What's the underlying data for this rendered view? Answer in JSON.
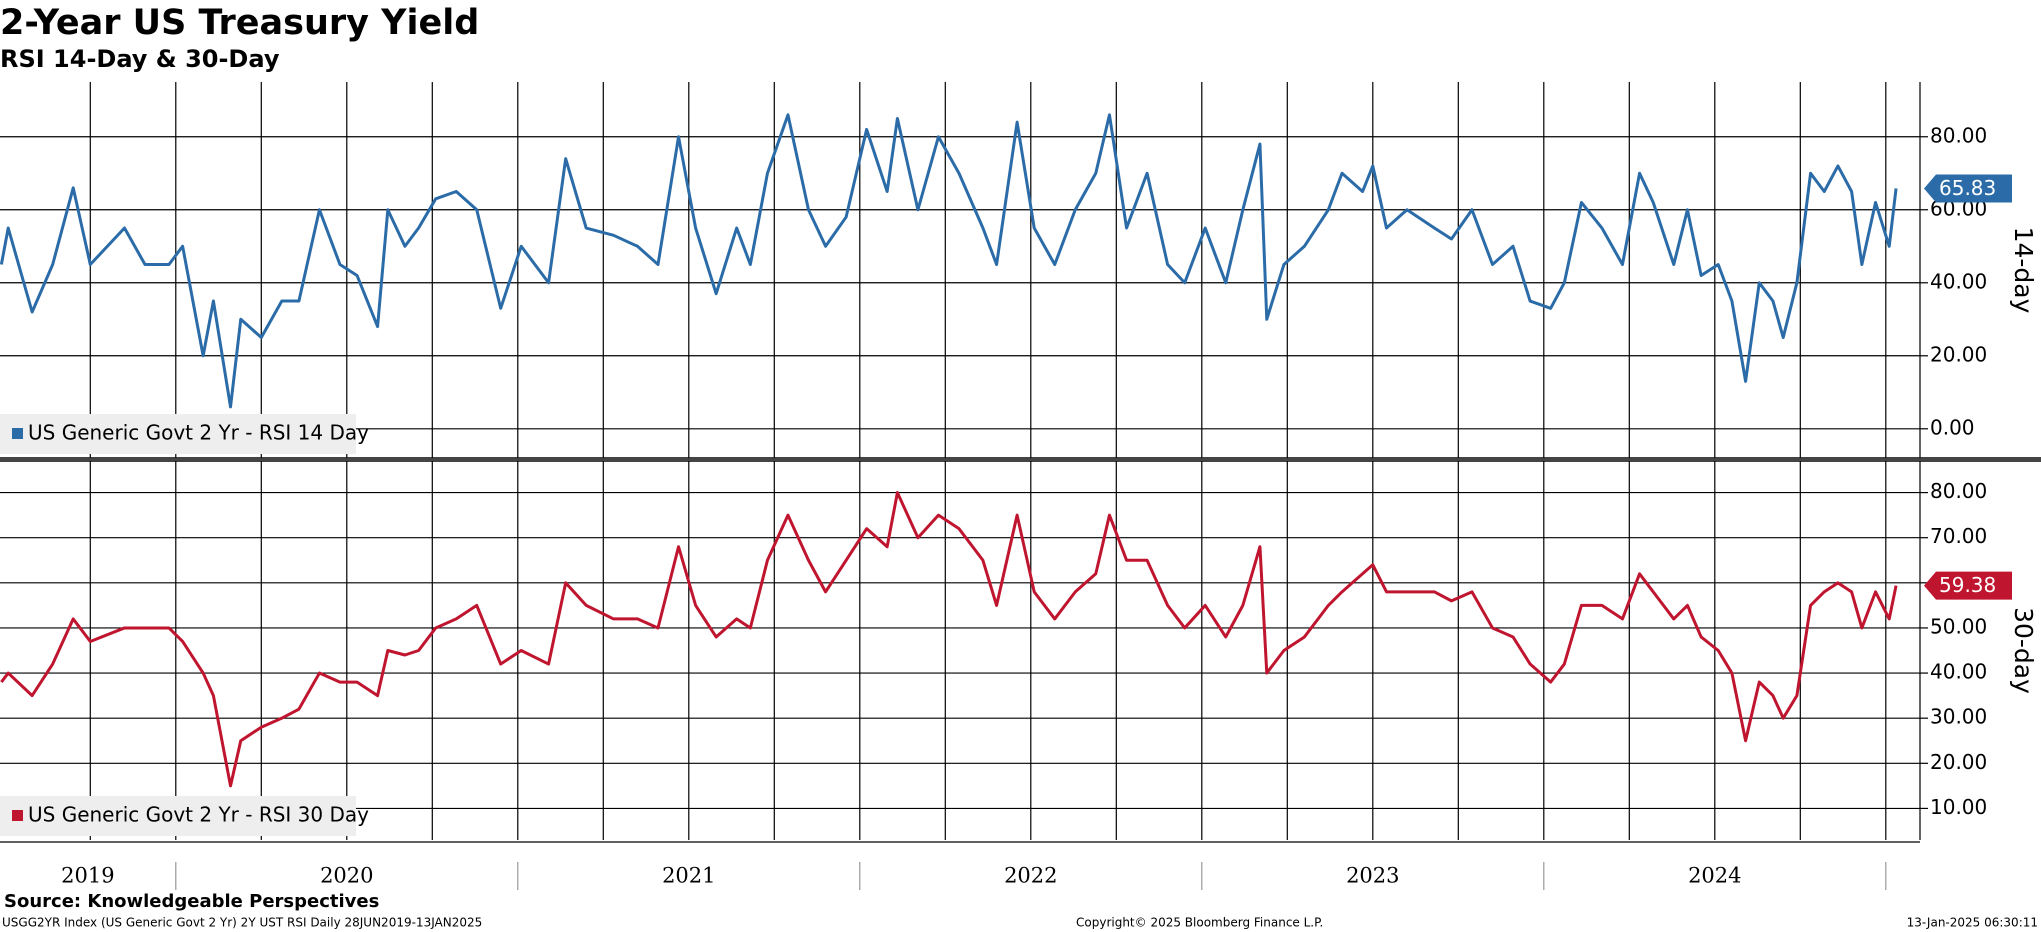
{
  "title": "2-Year US Treasury Yield",
  "subtitle": "RSI 14-Day & 30-Day",
  "source": "Source: Knowledgeable Perspectives",
  "footer_left": "USGG2YR Index (US Generic Govt 2 Yr) 2Y UST RSI  Daily 28JUN2019-13JAN2025",
  "footer_center": "Copyright© 2025 Bloomberg Finance L.P.",
  "footer_right": "13-Jan-2025 06:30:11",
  "x_axis": {
    "xlim": [
      2019.486,
      2025.1
    ],
    "year_ticks": [
      2020,
      2021,
      2022,
      2023,
      2024,
      2025
    ],
    "year_labels": [
      2019,
      2020,
      2021,
      2022,
      2023,
      2024
    ],
    "quarter_grid": [
      2019.75,
      2020,
      2020.25,
      2020.5,
      2020.75,
      2021,
      2021.25,
      2021.5,
      2021.75,
      2022,
      2022.25,
      2022.5,
      2022.75,
      2023,
      2023.25,
      2023.5,
      2023.75,
      2024,
      2024.25,
      2024.5,
      2024.75,
      2025
    ]
  },
  "chart_data": [
    {
      "type": "line",
      "y_axis_label": "14-day",
      "xlim": [
        2019.486,
        2025.1
      ],
      "ylim": [
        -8,
        95
      ],
      "yticks": [
        {
          "value": 0,
          "label": "0.00"
        },
        {
          "value": 20,
          "label": "20.00"
        },
        {
          "value": 40,
          "label": "40.00"
        },
        {
          "value": 60,
          "label": "60.00"
        },
        {
          "value": 80,
          "label": "80.00"
        }
      ],
      "grid": true,
      "x": [
        2019.49,
        2019.51,
        2019.58,
        2019.64,
        2019.7,
        2019.75,
        2019.85,
        2019.91,
        2019.98,
        2020.02,
        2020.08,
        2020.11,
        2020.16,
        2020.19,
        2020.25,
        2020.31,
        2020.36,
        2020.42,
        2020.48,
        2020.53,
        2020.59,
        2020.62,
        2020.67,
        2020.71,
        2020.76,
        2020.82,
        2020.88,
        2020.95,
        2021.01,
        2021.09,
        2021.14,
        2021.2,
        2021.28,
        2021.35,
        2021.41,
        2021.47,
        2021.52,
        2021.58,
        2021.64,
        2021.68,
        2021.73,
        2021.79,
        2021.85,
        2021.9,
        2021.96,
        2022.02,
        2022.08,
        2022.11,
        2022.17,
        2022.23,
        2022.29,
        2022.36,
        2022.4,
        2022.46,
        2022.51,
        2022.57,
        2022.63,
        2022.69,
        2022.73,
        2022.78,
        2022.84,
        2022.9,
        2022.95,
        2023.01,
        2023.07,
        2023.12,
        2023.17,
        2023.19,
        2023.24,
        2023.3,
        2023.37,
        2023.41,
        2023.47,
        2023.5,
        2023.54,
        2023.6,
        2023.68,
        2023.73,
        2023.79,
        2023.85,
        2023.91,
        2023.96,
        2024.02,
        2024.06,
        2024.11,
        2024.17,
        2024.23,
        2024.28,
        2024.32,
        2024.38,
        2024.42,
        2024.46,
        2024.51,
        2024.55,
        2024.59,
        2024.63,
        2024.67,
        2024.7,
        2024.74,
        2024.78,
        2024.82,
        2024.86,
        2024.9,
        2024.93,
        2024.97,
        2025.01,
        2025.03
      ],
      "series": [
        {
          "name": "US Generic Govt 2 Yr - RSI 14 Day",
          "color": "#2b6ca8",
          "values": [
            45,
            55,
            32,
            45,
            66,
            45,
            55,
            45,
            45,
            50,
            20,
            35,
            6,
            30,
            25,
            35,
            35,
            60,
            45,
            42,
            28,
            60,
            50,
            55,
            63,
            65,
            60,
            33,
            50,
            40,
            74,
            55,
            53,
            50,
            45,
            80,
            55,
            37,
            55,
            45,
            70,
            86,
            60,
            50,
            58,
            82,
            65,
            85,
            60,
            80,
            70,
            55,
            45,
            84,
            55,
            45,
            60,
            70,
            86,
            55,
            70,
            45,
            40,
            55,
            40,
            60,
            78,
            30,
            45,
            50,
            60,
            70,
            65,
            72,
            55,
            60,
            55,
            52,
            60,
            45,
            50,
            35,
            33,
            40,
            62,
            55,
            45,
            70,
            62,
            45,
            60,
            42,
            45,
            35,
            13,
            40,
            35,
            25,
            40,
            70,
            65,
            72,
            65,
            45,
            62,
            50,
            65.83
          ]
        }
      ]
    },
    {
      "type": "line",
      "y_axis_label": "30-day",
      "xlim": [
        2019.486,
        2025.1
      ],
      "ylim": [
        3,
        87
      ],
      "yticks": [
        {
          "value": 10,
          "label": "10.00"
        },
        {
          "value": 20,
          "label": "20.00"
        },
        {
          "value": 30,
          "label": "30.00"
        },
        {
          "value": 40,
          "label": "40.00"
        },
        {
          "value": 50,
          "label": "50.00"
        },
        {
          "value": 60,
          "label": "60.00"
        },
        {
          "value": 70,
          "label": "70.00"
        },
        {
          "value": 80,
          "label": "80.00"
        }
      ],
      "grid": true,
      "x": [
        2019.49,
        2019.51,
        2019.58,
        2019.64,
        2019.7,
        2019.75,
        2019.85,
        2019.91,
        2019.98,
        2020.02,
        2020.08,
        2020.11,
        2020.16,
        2020.19,
        2020.25,
        2020.31,
        2020.36,
        2020.42,
        2020.48,
        2020.53,
        2020.59,
        2020.62,
        2020.67,
        2020.71,
        2020.76,
        2020.82,
        2020.88,
        2020.95,
        2021.01,
        2021.09,
        2021.14,
        2021.2,
        2021.28,
        2021.35,
        2021.41,
        2021.47,
        2021.52,
        2021.58,
        2021.64,
        2021.68,
        2021.73,
        2021.79,
        2021.85,
        2021.9,
        2021.96,
        2022.02,
        2022.08,
        2022.11,
        2022.17,
        2022.23,
        2022.29,
        2022.36,
        2022.4,
        2022.46,
        2022.51,
        2022.57,
        2022.63,
        2022.69,
        2022.73,
        2022.78,
        2022.84,
        2022.9,
        2022.95,
        2023.01,
        2023.07,
        2023.12,
        2023.17,
        2023.19,
        2023.24,
        2023.3,
        2023.37,
        2023.41,
        2023.47,
        2023.5,
        2023.54,
        2023.6,
        2023.68,
        2023.73,
        2023.79,
        2023.85,
        2023.91,
        2023.96,
        2024.02,
        2024.06,
        2024.11,
        2024.17,
        2024.23,
        2024.28,
        2024.32,
        2024.38,
        2024.42,
        2024.46,
        2024.51,
        2024.55,
        2024.59,
        2024.63,
        2024.67,
        2024.7,
        2024.74,
        2024.78,
        2024.82,
        2024.86,
        2024.9,
        2024.93,
        2024.97,
        2025.01,
        2025.03
      ],
      "series": [
        {
          "name": "US Generic Govt 2 Yr - RSI 30 Day",
          "color": "#c0152f",
          "values": [
            38,
            40,
            35,
            42,
            52,
            47,
            50,
            50,
            50,
            47,
            40,
            35,
            15,
            25,
            28,
            30,
            32,
            40,
            38,
            38,
            35,
            45,
            44,
            45,
            50,
            52,
            55,
            42,
            45,
            42,
            60,
            55,
            52,
            52,
            50,
            68,
            55,
            48,
            52,
            50,
            65,
            75,
            65,
            58,
            65,
            72,
            68,
            80,
            70,
            75,
            72,
            65,
            55,
            75,
            58,
            52,
            58,
            62,
            75,
            65,
            65,
            55,
            50,
            55,
            48,
            55,
            68,
            40,
            45,
            48,
            55,
            58,
            62,
            64,
            58,
            58,
            58,
            56,
            58,
            50,
            48,
            42,
            38,
            42,
            55,
            55,
            52,
            62,
            58,
            52,
            55,
            48,
            45,
            40,
            25,
            38,
            35,
            30,
            35,
            55,
            58,
            60,
            58,
            50,
            58,
            52,
            59.38
          ]
        }
      ]
    }
  ]
}
